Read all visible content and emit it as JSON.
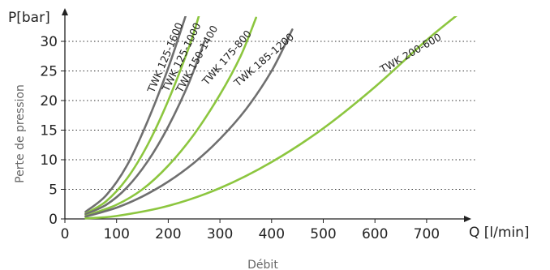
{
  "chart_data": {
    "type": "line",
    "title": "",
    "xlabel": "Débit",
    "ylabel": "Perte de pression",
    "x_unit": "Q [l/min]",
    "y_unit": "P[bar]",
    "xlim": [
      0,
      780
    ],
    "ylim": [
      0,
      34
    ],
    "x_ticks": [
      "0",
      "100",
      "200",
      "300",
      "400",
      "500",
      "600",
      "700"
    ],
    "y_ticks": [
      "0",
      "5",
      "10",
      "15",
      "20",
      "25",
      "30"
    ],
    "grid": "dotted horizontal",
    "series": [
      {
        "name": "TWK 125-1600",
        "color": "#6f6f6f",
        "x": [
          40,
          80,
          120,
          160,
          200,
          240
        ],
        "y": [
          1.2,
          4.0,
          9.0,
          16.5,
          25.5,
          36.0
        ]
      },
      {
        "name": "TWK 125-1000",
        "color": "#8cc63f",
        "x": [
          40,
          80,
          120,
          160,
          200,
          240,
          260
        ],
        "y": [
          0.9,
          3.0,
          6.8,
          12.5,
          20.0,
          29.0,
          34.5
        ]
      },
      {
        "name": "TWK 150-1400",
        "color": "#6f6f6f",
        "x": [
          40,
          80,
          120,
          160,
          200,
          240,
          270
        ],
        "y": [
          0.8,
          2.4,
          5.3,
          9.7,
          15.6,
          23.0,
          30.0
        ]
      },
      {
        "name": "TWK 175-800",
        "color": "#8cc63f",
        "x": [
          40,
          100,
          150,
          200,
          250,
          300,
          340,
          370
        ],
        "y": [
          0.5,
          2.4,
          5.0,
          9.0,
          14.3,
          21.0,
          27.5,
          34.0
        ]
      },
      {
        "name": "TWK 185-1200",
        "color": "#6f6f6f",
        "x": [
          40,
          100,
          150,
          200,
          250,
          300,
          350,
          400,
          440
        ],
        "y": [
          0.4,
          1.9,
          3.8,
          6.3,
          9.5,
          13.5,
          18.5,
          25.0,
          32.0
        ]
      },
      {
        "name": "TWK 200-600",
        "color": "#8cc63f",
        "x": [
          40,
          100,
          200,
          300,
          400,
          500,
          600,
          700,
          760
        ],
        "y": [
          0.1,
          0.5,
          2.2,
          5.2,
          9.6,
          15.3,
          22.3,
          30.2,
          34.5
        ]
      }
    ]
  }
}
